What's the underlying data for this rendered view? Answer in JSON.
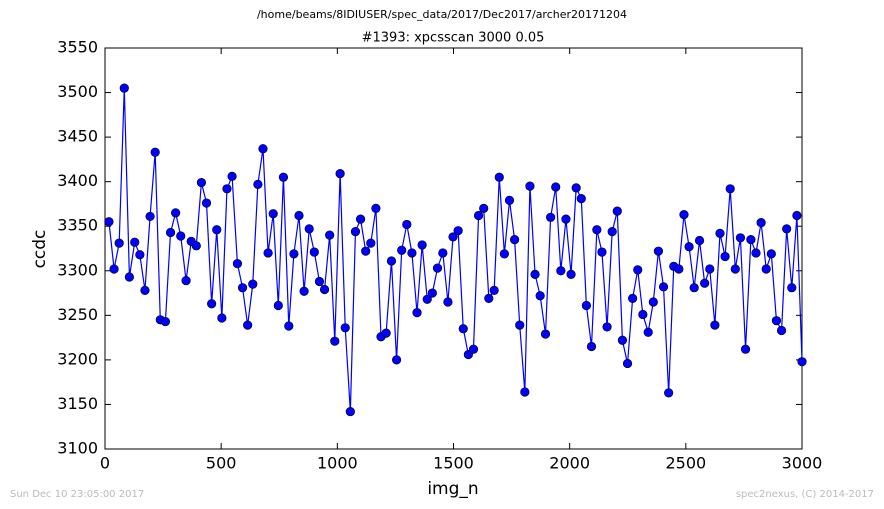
{
  "chart_data": {
    "type": "line",
    "suptitle": "/home/beams/8IDIUSER/spec_data/2017/Dec2017/archer20171204",
    "title": "#1393: xpcsscan 3000 0.05",
    "xlabel": "img_n",
    "ylabel": "ccdc",
    "footer_left": "Sun Dec 10 23:05:00 2017",
    "footer_right": "spec2nexus, (C) 2014-2017",
    "xlim": [
      0,
      3000
    ],
    "xticks": [
      0,
      500,
      1000,
      1500,
      2000,
      2500,
      3000
    ],
    "ylim": [
      3100,
      3550
    ],
    "yticks": [
      3100,
      3150,
      3200,
      3250,
      3300,
      3350,
      3400,
      3450,
      3500,
      3550
    ],
    "x": [
      17,
      39,
      61,
      83,
      105,
      128,
      150,
      172,
      194,
      216,
      238,
      260,
      282,
      304,
      326,
      349,
      371,
      393,
      415,
      437,
      459,
      481,
      503,
      525,
      547,
      570,
      592,
      614,
      636,
      658,
      680,
      702,
      724,
      746,
      768,
      791,
      813,
      835,
      857,
      879,
      901,
      923,
      945,
      967,
      989,
      1012,
      1034,
      1056,
      1078,
      1100,
      1122,
      1144,
      1166,
      1188,
      1210,
      1233,
      1255,
      1277,
      1299,
      1321,
      1343,
      1365,
      1387,
      1409,
      1431,
      1454,
      1476,
      1498,
      1520,
      1542,
      1564,
      1586,
      1608,
      1630,
      1652,
      1675,
      1697,
      1719,
      1741,
      1763,
      1785,
      1807,
      1829,
      1851,
      1873,
      1896,
      1918,
      1940,
      1962,
      1984,
      2006,
      2028,
      2050,
      2072,
      2094,
      2117,
      2139,
      2161,
      2183,
      2205,
      2227,
      2249,
      2271,
      2293,
      2315,
      2338,
      2360,
      2382,
      2404,
      2426,
      2448,
      2470,
      2492,
      2514,
      2536,
      2559,
      2581,
      2603,
      2625,
      2647,
      2669,
      2691,
      2713,
      2735,
      2757,
      2780,
      2802,
      2824,
      2846,
      2868,
      2890,
      2912,
      2934,
      2956,
      2978,
      3000
    ],
    "series": [
      {
        "color": "#0000ff",
        "values": [
          3355,
          3302,
          3331,
          3505,
          3293,
          3332,
          3318,
          3278,
          3361,
          3433,
          3245,
          3243,
          3343,
          3365,
          3339,
          3289,
          3333,
          3328,
          3399,
          3376,
          3263,
          3346,
          3247,
          3392,
          3406,
          3308,
          3281,
          3239,
          3285,
          3397,
          3437,
          3320,
          3364,
          3261,
          3405,
          3238,
          3319,
          3362,
          3277,
          3347,
          3321,
          3288,
          3279,
          3340,
          3221,
          3409,
          3236,
          3142,
          3344,
          3358,
          3322,
          3331,
          3370,
          3226,
          3230,
          3311,
          3200,
          3323,
          3352,
          3320,
          3253,
          3329,
          3268,
          3275,
          3303,
          3320,
          3265,
          3338,
          3345,
          3235,
          3206,
          3212,
          3362,
          3370,
          3269,
          3278,
          3405,
          3319,
          3379,
          3335,
          3239,
          3164,
          3395,
          3296,
          3272,
          3229,
          3360,
          3394,
          3300,
          3358,
          3296,
          3393,
          3381,
          3261,
          3215,
          3346,
          3321,
          3237,
          3344,
          3367,
          3222,
          3196,
          3269,
          3301,
          3251,
          3231,
          3265,
          3322,
          3282,
          3163,
          3305,
          3302,
          3363,
          3327,
          3281,
          3334,
          3286,
          3302,
          3239,
          3342,
          3316,
          3392,
          3302,
          3337,
          3212,
          3335,
          3320,
          3354,
          3302,
          3319,
          3244,
          3233,
          3347,
          3281,
          3362,
          3198
        ]
      }
    ]
  }
}
